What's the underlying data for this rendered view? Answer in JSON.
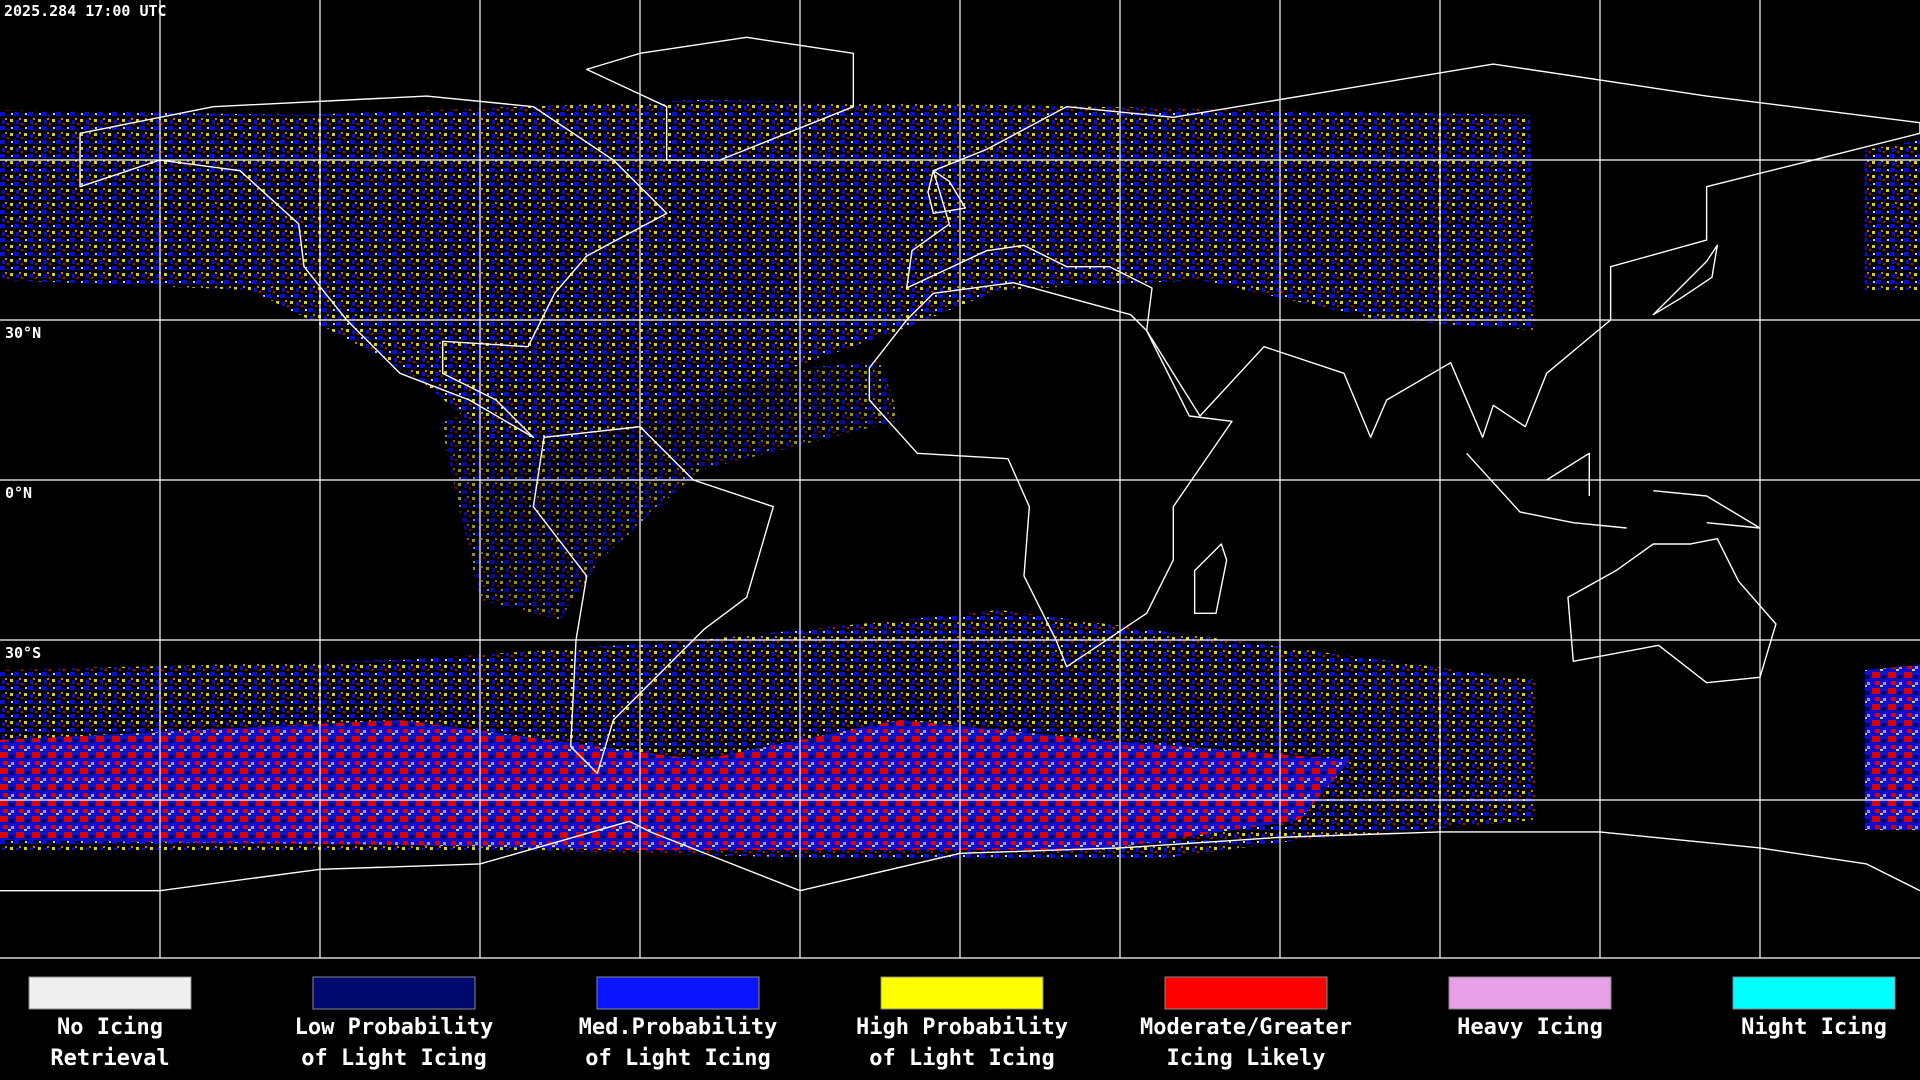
{
  "header": {
    "timestamp": "2025.284 17:00 UTC"
  },
  "map": {
    "latitude_labels": [
      "30°N",
      "0°N",
      "30°S"
    ]
  },
  "legend": {
    "items": [
      {
        "lines": [
          "No Icing",
          "Retrieval"
        ],
        "color": "#efefef"
      },
      {
        "lines": [
          "Low Probability",
          "of Light Icing"
        ],
        "color": "#000a6e"
      },
      {
        "lines": [
          "Med.Probability",
          "of Light Icing"
        ],
        "color": "#0a14ff"
      },
      {
        "lines": [
          "High Probability",
          "of Light Icing"
        ],
        "color": "#ffff00"
      },
      {
        "lines": [
          "Moderate/Greater",
          "Icing Likely"
        ],
        "color": "#ff0000"
      },
      {
        "lines": [
          "Heavy Icing"
        ],
        "color": "#e6a0e6"
      },
      {
        "lines": [
          "Night Icing"
        ],
        "color": "#00ffff"
      }
    ]
  }
}
